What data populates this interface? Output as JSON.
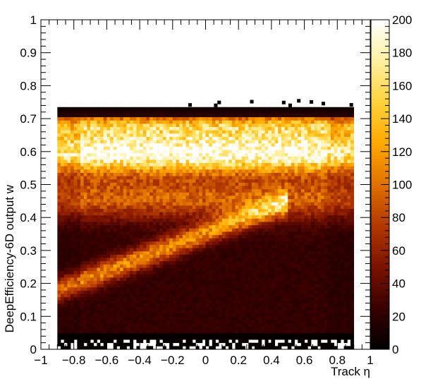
{
  "chart_data": {
    "type": "heatmap",
    "xlabel": "Track η",
    "ylabel": "DeepEfficiency-6D output w",
    "xlim": [
      -1,
      1
    ],
    "ylim": [
      0,
      1
    ],
    "x_ticks": [
      "−1",
      "−0.8",
      "−0.6",
      "−0.4",
      "−0.2",
      "0",
      "0.2",
      "0.4",
      "0.6",
      "0.8",
      "1"
    ],
    "x_tick_values": [
      -1,
      -0.8,
      -0.6,
      -0.4,
      -0.2,
      0,
      0.2,
      0.4,
      0.6,
      0.8,
      1
    ],
    "y_ticks": [
      "0",
      "0.1",
      "0.2",
      "0.3",
      "0.4",
      "0.5",
      "0.6",
      "0.7",
      "0.8",
      "0.9",
      "1"
    ],
    "y_tick_values": [
      0,
      0.1,
      0.2,
      0.3,
      0.4,
      0.5,
      0.6,
      0.7,
      0.8,
      0.9,
      1
    ],
    "colorbar": {
      "range": [
        0,
        200
      ],
      "ticks": [
        "0",
        "20",
        "40",
        "60",
        "80",
        "100",
        "120",
        "140",
        "160",
        "180",
        "200"
      ],
      "tick_values": [
        0,
        20,
        40,
        60,
        80,
        100,
        120,
        140,
        160,
        180,
        200
      ],
      "palette": [
        "#000000",
        "#3a0000",
        "#7a1200",
        "#b33800",
        "#e07000",
        "#ffa800",
        "#ffd23a",
        "#fff0a0",
        "#ffffff"
      ]
    },
    "data_region": {
      "eta_range": [
        -0.9,
        0.9
      ],
      "w_range": [
        0,
        0.735
      ],
      "features": [
        {
          "kind": "horizontal band",
          "w_center": 0.6,
          "peak_count": 180
        },
        {
          "kind": "horizontal band",
          "w_center": 0.68,
          "peak_count": 90
        },
        {
          "kind": "horizontal band",
          "w_center": 0.46,
          "peak_count": 70
        },
        {
          "kind": "diagonal ridge",
          "from": [
            -0.9,
            0.18
          ],
          "to": [
            0.5,
            0.45
          ],
          "peak_count": 90
        }
      ]
    }
  }
}
